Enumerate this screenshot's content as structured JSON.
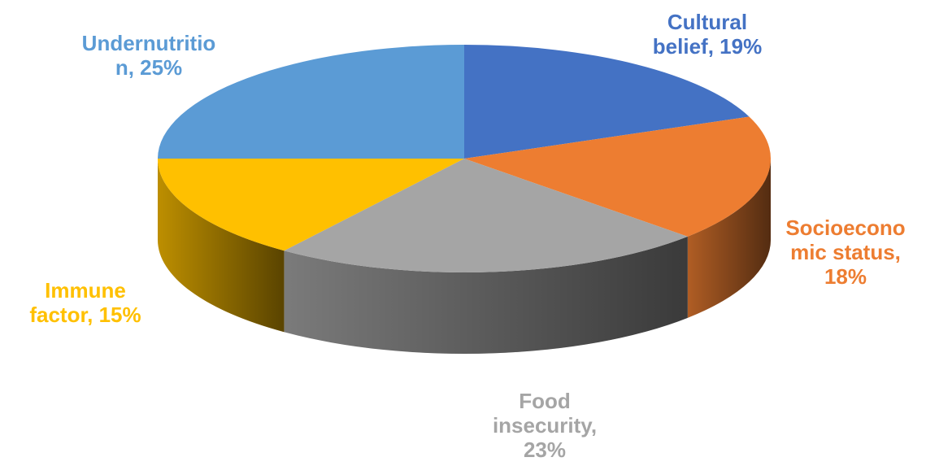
{
  "chart_data": {
    "type": "pie",
    "title": "",
    "style": "3d-tilted",
    "slices": [
      {
        "label": "Cultural belief",
        "value": 19,
        "value_label": "19%",
        "color": "#4472C4",
        "label_lines": [
          "Cultural",
          "belief, 19%"
        ]
      },
      {
        "label": "Socioeconomic status",
        "value": 18,
        "value_label": "18%",
        "color": "#ED7D31",
        "label_lines": [
          "Socioecono",
          "mic status,",
          "18%"
        ]
      },
      {
        "label": "Food insecurity",
        "value": 23,
        "value_label": "23%",
        "color": "#A5A5A5",
        "label_lines": [
          "Food",
          "insecurity,",
          "23%"
        ]
      },
      {
        "label": "Immune factor",
        "value": 15,
        "value_label": "15%",
        "color": "#FFC000",
        "label_lines": [
          "Immune",
          "factor, 15%"
        ]
      },
      {
        "label": "Undernutrition",
        "value": 25,
        "value_label": "25%",
        "color": "#5B9BD5",
        "label_lines": [
          "Undernutritio",
          "n, 25%"
        ]
      }
    ],
    "start_angle_deg": 0,
    "direction": "clockwise",
    "legend": "none"
  }
}
